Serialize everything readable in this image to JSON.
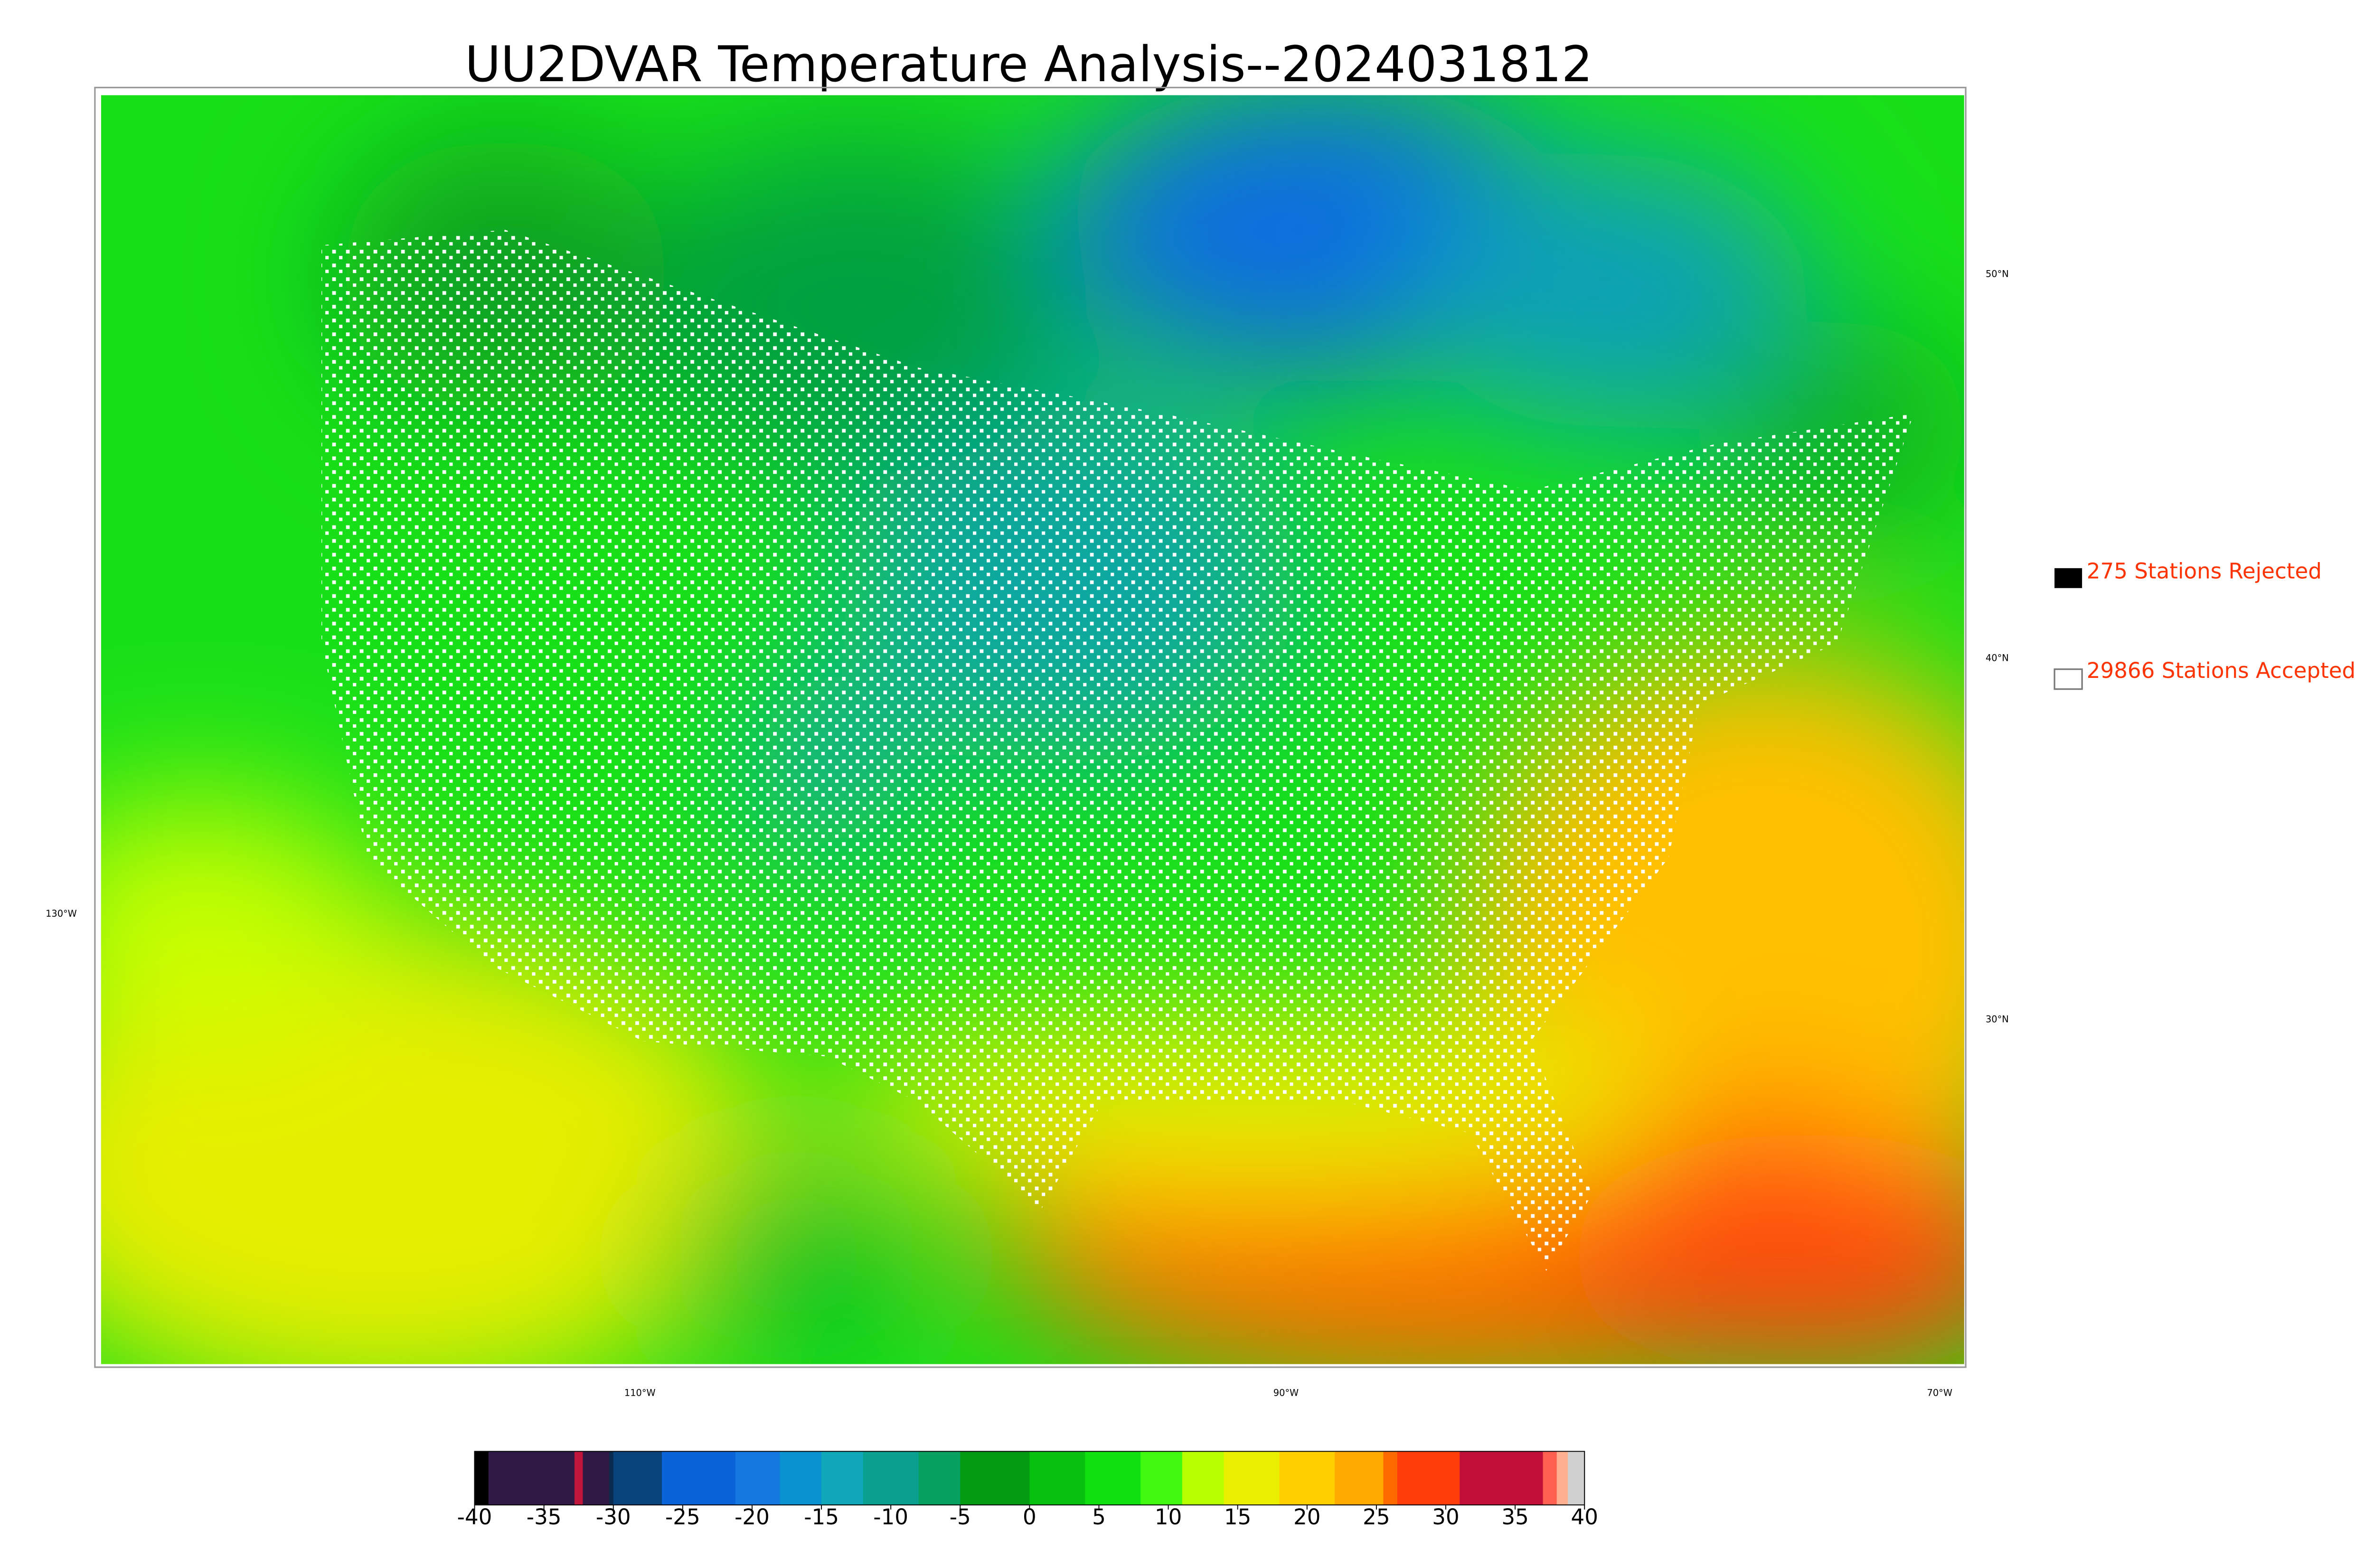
{
  "title": "UU2DVAR Temperature Analysis--2024031812",
  "legend": [
    {
      "label": "275 Stations Rejected",
      "color": "#000000"
    },
    {
      "label": "29866 Stations Accepted",
      "color": "#ffffff"
    }
  ],
  "map_labels": {
    "lat": [
      "50°N",
      "40°N",
      "30°N"
    ],
    "lon": [
      "130°W",
      "110°W",
      "90°W",
      "70°W"
    ]
  },
  "colorbar": {
    "range": [
      -40,
      40
    ],
    "ticks": [
      -40,
      -35,
      -30,
      -25,
      -20,
      -15,
      -10,
      -5,
      0,
      5,
      10,
      15,
      20,
      25,
      30,
      35,
      40
    ],
    "segments": [
      {
        "from": -40,
        "to": -39,
        "color": "#000000"
      },
      {
        "from": -39,
        "to": -32.8,
        "color": "#2e1a45"
      },
      {
        "from": -32.8,
        "to": -32.2,
        "color": "#c0163c"
      },
      {
        "from": -32.2,
        "to": -30.3,
        "color": "#2e1a45"
      },
      {
        "from": -30.3,
        "to": -30,
        "color": "#0a2a50"
      },
      {
        "from": -30,
        "to": -26.5,
        "color": "#08437a"
      },
      {
        "from": -26.5,
        "to": -21.2,
        "color": "#0a64d8"
      },
      {
        "from": -21.2,
        "to": -18,
        "color": "#1478e0"
      },
      {
        "from": -18,
        "to": -15,
        "color": "#0a92d0"
      },
      {
        "from": -15,
        "to": -12,
        "color": "#10a8b8"
      },
      {
        "from": -12,
        "to": -8,
        "color": "#0aa090"
      },
      {
        "from": -8,
        "to": -5,
        "color": "#06a060"
      },
      {
        "from": -5,
        "to": 0,
        "color": "#029a10"
      },
      {
        "from": 0,
        "to": 4,
        "color": "#08c010"
      },
      {
        "from": 4,
        "to": 8,
        "color": "#10e010"
      },
      {
        "from": 8,
        "to": 11,
        "color": "#40fa10"
      },
      {
        "from": 11,
        "to": 14,
        "color": "#b8ff00"
      },
      {
        "from": 14,
        "to": 18,
        "color": "#e8f000"
      },
      {
        "from": 18,
        "to": 22,
        "color": "#ffd000"
      },
      {
        "from": 22,
        "to": 25.5,
        "color": "#ffaa00"
      },
      {
        "from": 25.5,
        "to": 26.5,
        "color": "#ff6a00"
      },
      {
        "from": 26.5,
        "to": 31,
        "color": "#ff3d0a"
      },
      {
        "from": 31,
        "to": 37,
        "color": "#c0103a"
      },
      {
        "from": 37,
        "to": 38,
        "color": "#ff6050"
      },
      {
        "from": 38,
        "to": 38.8,
        "color": "#ffb090"
      },
      {
        "from": 38.8,
        "to": 40,
        "color": "#d0d0d0"
      }
    ]
  }
}
